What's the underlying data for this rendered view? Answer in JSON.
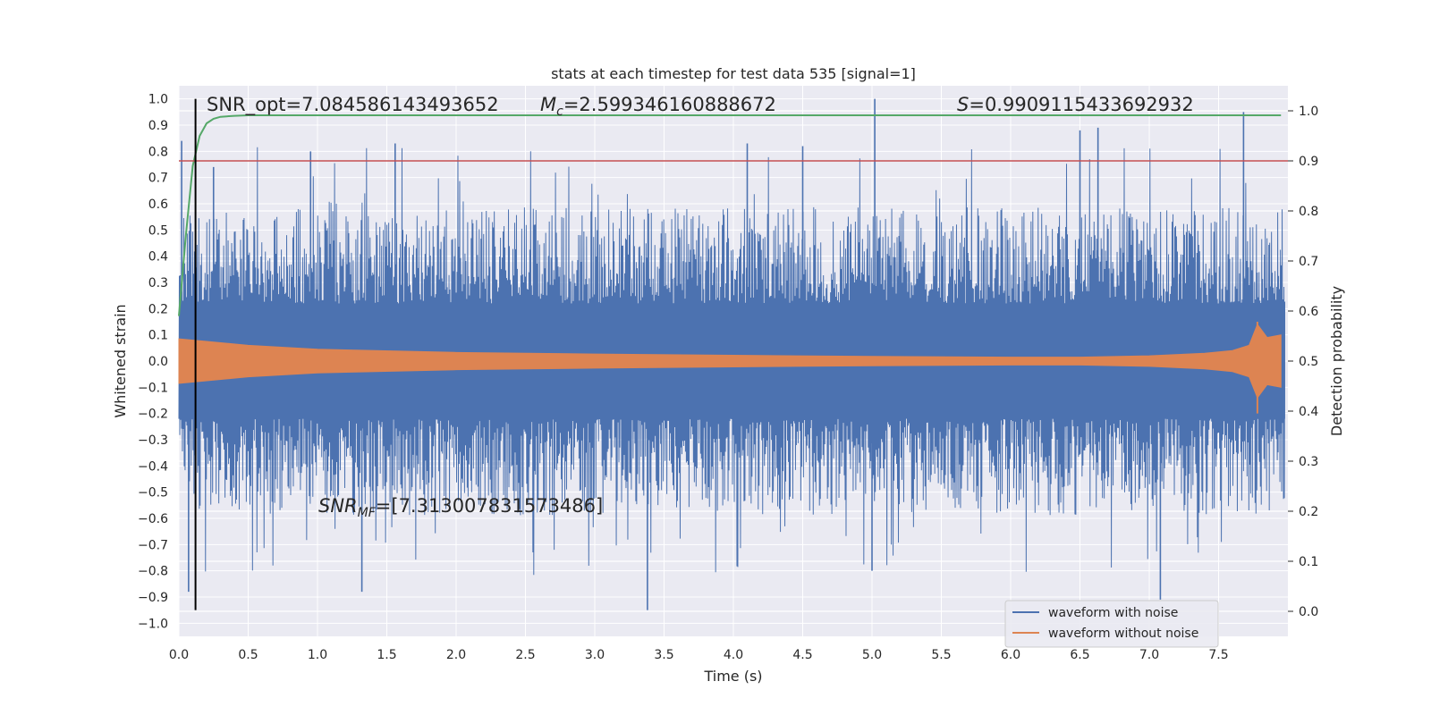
{
  "chart_data": {
    "type": "line",
    "title": "stats at each timestep for test data 535 [signal=1]",
    "xlabel": "Time (s)",
    "ylabel_left": "Whitened strain",
    "ylabel_right": "Detection probability",
    "xlim": [
      0.0,
      8.0
    ],
    "ylim_left": [
      -1.05,
      1.05
    ],
    "ylim_right": [
      -0.05,
      1.05
    ],
    "x_ticks": [
      "0.0",
      "0.5",
      "1.0",
      "1.5",
      "2.0",
      "2.5",
      "3.0",
      "3.5",
      "4.0",
      "4.5",
      "5.0",
      "5.5",
      "6.0",
      "6.5",
      "7.0",
      "7.5"
    ],
    "y_ticks_left": [
      "1.0",
      "0.9",
      "0.8",
      "0.7",
      "0.6",
      "0.5",
      "0.4",
      "0.3",
      "0.2",
      "0.1",
      "0.0",
      "−0.1",
      "−0.2",
      "−0.3",
      "−0.4",
      "−0.5",
      "−0.6",
      "−0.7",
      "−0.8",
      "−0.9",
      "−1.0"
    ],
    "y_ticks_right": [
      "1.0",
      "0.9",
      "0.8",
      "0.7",
      "0.6",
      "0.5",
      "0.4",
      "0.3",
      "0.2",
      "0.1",
      "0.0"
    ],
    "grid": true,
    "legend_position": "lower-right",
    "series": [
      {
        "name": "waveform with noise",
        "color": "#4c72b0",
        "axis": "left",
        "description": "dense noisy whitened strain, roughly ±0.6 envelope with spikes to ±1.0",
        "peaks": [
          {
            "x": 0.02,
            "y": 0.84
          },
          {
            "x": 0.25,
            "y": 0.74
          },
          {
            "x": 0.95,
            "y": 0.8
          },
          {
            "x": 1.56,
            "y": 0.83
          },
          {
            "x": 4.1,
            "y": 0.83
          },
          {
            "x": 4.5,
            "y": 0.82
          },
          {
            "x": 5.02,
            "y": 1.0
          },
          {
            "x": 6.5,
            "y": 0.88
          },
          {
            "x": 6.63,
            "y": 0.89
          },
          {
            "x": 7.68,
            "y": 0.95
          },
          {
            "x": 3.38,
            "y": -0.95
          },
          {
            "x": 7.08,
            "y": -0.91
          },
          {
            "x": 0.07,
            "y": -0.88
          },
          {
            "x": 1.32,
            "y": -0.88
          },
          {
            "x": 5.0,
            "y": -0.8
          }
        ]
      },
      {
        "name": "waveform without noise",
        "color": "#dd8452",
        "axis": "left",
        "description": "chirp signal, envelope amplitude vs time",
        "envelope_x": [
          0.0,
          0.5,
          1.0,
          2.0,
          3.0,
          4.0,
          5.0,
          6.0,
          6.5,
          7.0,
          7.4,
          7.6,
          7.72,
          7.78,
          7.85,
          7.95
        ],
        "envelope_y": [
          0.085,
          0.06,
          0.045,
          0.033,
          0.027,
          0.022,
          0.018,
          0.015,
          0.015,
          0.02,
          0.03,
          0.04,
          0.06,
          0.14,
          0.09,
          0.1
        ]
      },
      {
        "name": "detection probability",
        "color": "#55a868",
        "axis": "right",
        "x": [
          0.0,
          0.05,
          0.1,
          0.15,
          0.2,
          0.25,
          0.3,
          0.4,
          0.5,
          0.8,
          1.0,
          2.0,
          4.0,
          6.0,
          7.95
        ],
        "y": [
          0.59,
          0.75,
          0.89,
          0.95,
          0.975,
          0.984,
          0.988,
          0.99,
          0.991,
          0.991,
          0.991,
          0.991,
          0.991,
          0.991,
          0.991
        ]
      }
    ],
    "threshold": {
      "axis": "right",
      "value": 0.9,
      "color": "#c44e52"
    },
    "marker_line": {
      "x": 0.12,
      "y0": -0.95,
      "y1": 1.0,
      "color": "#000000"
    },
    "annotations": {
      "snr_opt": "SNR_opt=7.084586143493652",
      "mc_symbol": "M",
      "mc_sub": "c",
      "mc_value": "=2.599346160888672",
      "s_symbol": "S",
      "s_value": "=0.9909115433692932",
      "snr_mf_symbol": "SNR",
      "snr_mf_sub": "MF",
      "snr_mf_value": "=[7.313007831573486]"
    }
  }
}
